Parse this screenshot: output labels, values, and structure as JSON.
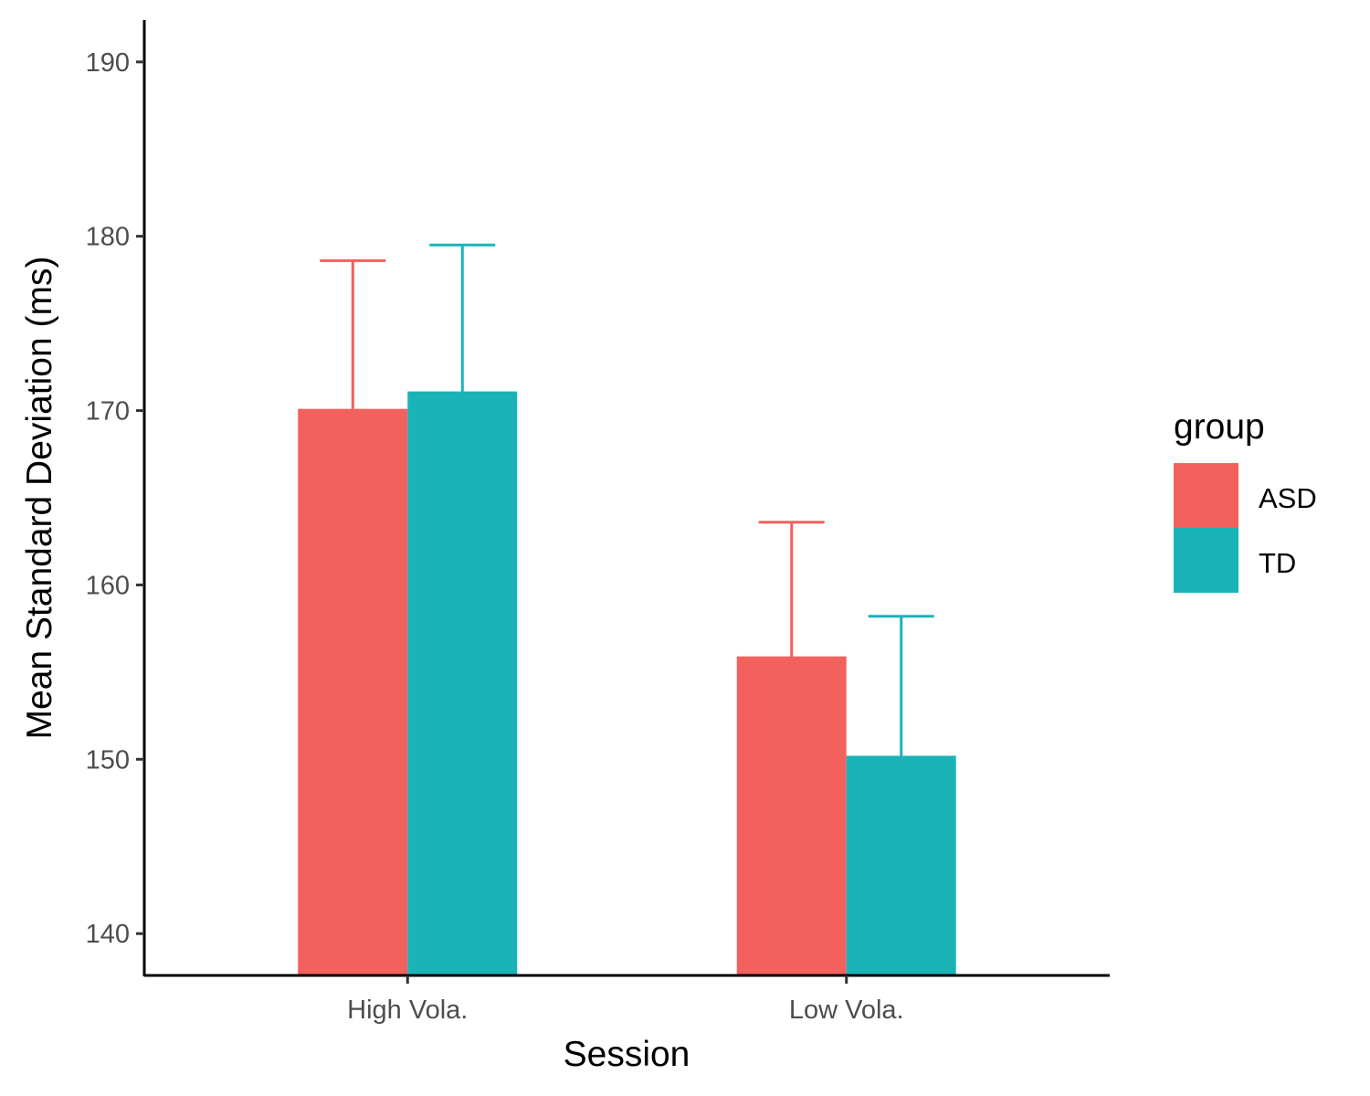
{
  "chart_data": {
    "type": "bar",
    "xlabel": "Session",
    "ylabel": "Mean Standard Deviation (ms)",
    "categories": [
      "High Vola.",
      "Low Vola."
    ],
    "series": [
      {
        "name": "ASD",
        "color": "#F2615D",
        "values": [
          170.1,
          155.9
        ],
        "error_upper": [
          178.6,
          163.6
        ]
      },
      {
        "name": "TD",
        "color": "#1AB3B8",
        "values": [
          171.1,
          150.2
        ],
        "error_upper": [
          179.5,
          158.2
        ]
      }
    ],
    "ylim": [
      137.6,
      192.4
    ],
    "yticks": [
      140,
      150,
      160,
      170,
      180,
      190
    ],
    "grid": false,
    "legend": {
      "title": "group",
      "position": "right"
    }
  }
}
